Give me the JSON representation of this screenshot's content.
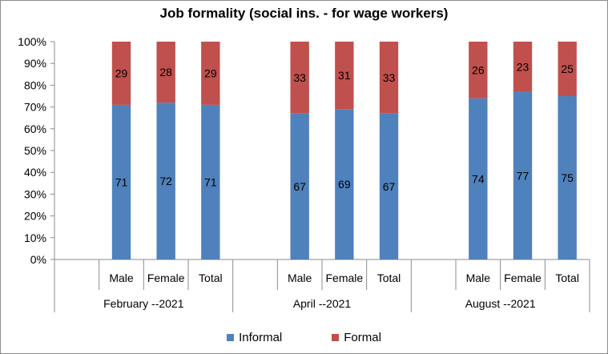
{
  "chart_data": {
    "type": "bar",
    "stacked": true,
    "title": "Job formality (social ins. - for wage workers)",
    "groups": [
      {
        "label": "February --2021",
        "categories": [
          "Male",
          "Female",
          "Total"
        ]
      },
      {
        "label": "April --2021",
        "categories": [
          "Male",
          "Female",
          "Total"
        ]
      },
      {
        "label": "August --2021",
        "categories": [
          "Male",
          "Female",
          "Total"
        ]
      }
    ],
    "series": [
      {
        "name": "Informal",
        "color": "#4f81bd",
        "values": [
          71,
          72,
          71,
          67,
          69,
          67,
          74,
          77,
          75
        ]
      },
      {
        "name": "Formal",
        "color": "#c0504d",
        "values": [
          29,
          28,
          29,
          33,
          31,
          33,
          26,
          23,
          25
        ]
      }
    ],
    "ylim": [
      0,
      100
    ],
    "yticks": [
      "0%",
      "10%",
      "20%",
      "30%",
      "40%",
      "50%",
      "60%",
      "70%",
      "80%",
      "90%",
      "100%"
    ],
    "legend_position": "bottom"
  }
}
